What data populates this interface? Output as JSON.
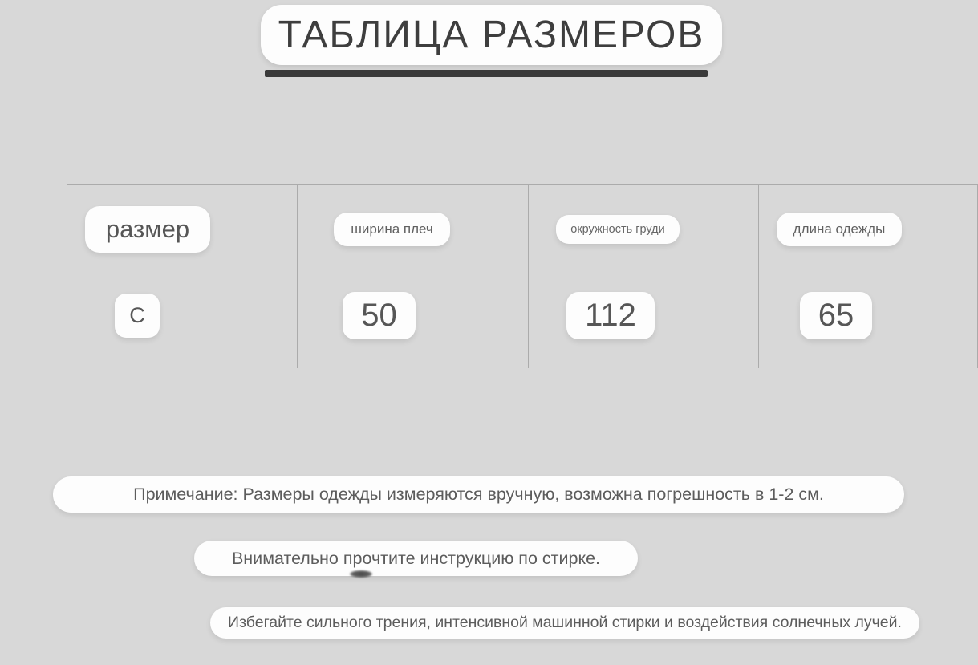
{
  "title": {
    "text": "ТАБЛИЦА РАЗМЕРОВ"
  },
  "table": {
    "headers": [
      "размер",
      "ширина плеч",
      "окружность груди",
      "длина одежды"
    ],
    "rows": [
      [
        "С",
        "50",
        "112",
        "65"
      ]
    ]
  },
  "notes": [
    "Примечание: Размеры одежды измеряются вручную, возможна погрешность в 1-2 см.",
    "Внимательно прочтите инструкцию по стирке.",
    "Избегайте сильного трения, интенсивной машинной стирки и воздействия солнечных лучей."
  ],
  "colors": {
    "page_background": "#d8d8d8",
    "pill_background": "#fdfdfd",
    "title_text": "#3e3e3e",
    "underline_bar": "#3a3a3a",
    "table_border": "#ababab",
    "body_text": "#5c5c5c"
  }
}
